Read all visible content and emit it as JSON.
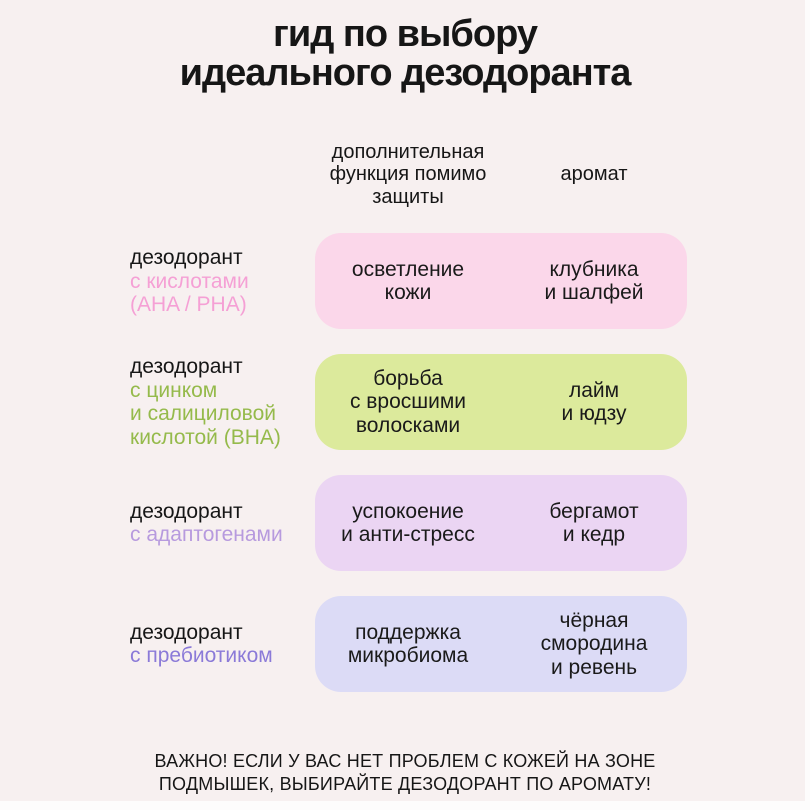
{
  "page": {
    "background_color": "#f7f0f0",
    "text_color": "#161616",
    "title": "гид по выбору\nидеального дезодоранта"
  },
  "header": {
    "function_label": "дополнительная\nфункция помимо\nзащиты",
    "aroma_label": "аромат"
  },
  "rows": [
    {
      "product": "дезодорант",
      "variant": "с кислотами\n(AHA / PHA)",
      "variant_color": "#f5a0d5",
      "box_color": "#fbd7ea",
      "function": "осветление\nкожи",
      "aroma": "клубника\nи шалфей"
    },
    {
      "product": "дезодорант",
      "variant": "с цинком\nи салициловой\nкислотой (BHA)",
      "variant_color": "#95ba4b",
      "box_color": "#dcea9c",
      "function": "борьба\nс вросшими\nволосками",
      "aroma": "лайм\nи юдзу"
    },
    {
      "product": "дезодорант",
      "variant": "с адаптогенами",
      "variant_color": "#b79ade",
      "box_color": "#ebd5f3",
      "function": "успокоение\nи анти-стресс",
      "aroma": "бергамот\nи кедр"
    },
    {
      "product": "дезодорант",
      "variant": "с пребиотиком",
      "variant_color": "#8b7ad8",
      "box_color": "#dcdbf6",
      "function": "поддержка\nмикробиома",
      "aroma": "чёрная\nсмородина\nи ревень"
    }
  ],
  "footer": {
    "note": "ВАЖНО! ЕСЛИ У ВАС НЕТ ПРОБЛЕМ С КОЖЕЙ НА ЗОНЕ\nПОДМЫШЕК, ВЫБИРАЙТЕ ДЕЗОДОРАНТ ПО АРОМАТУ!"
  }
}
